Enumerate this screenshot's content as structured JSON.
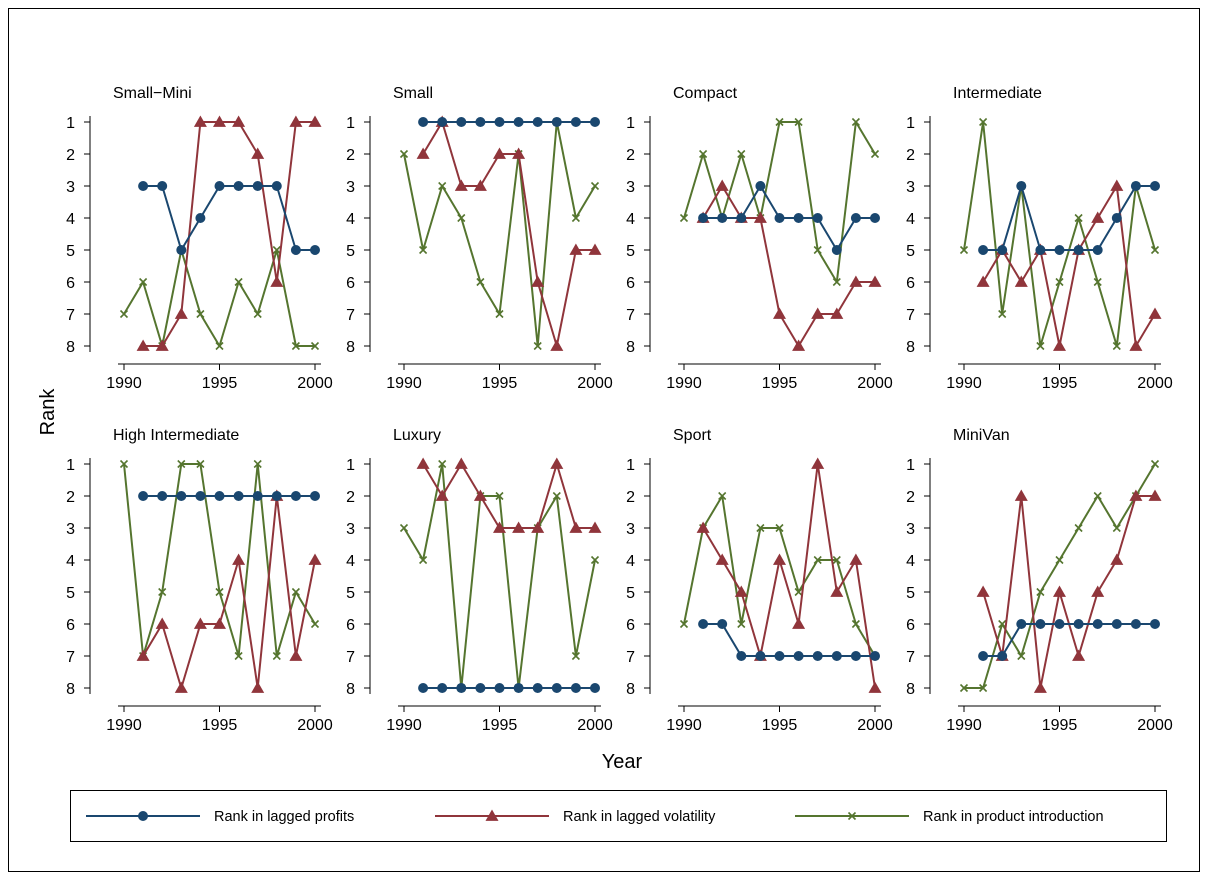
{
  "chart_data": {
    "type": "line",
    "xlabel": "Year",
    "ylabel": "Rank",
    "xlim": [
      1990,
      2000
    ],
    "ylim": [
      1,
      8
    ],
    "y_reversed": true,
    "x_ticks": [
      "1990",
      "1995",
      "2000"
    ],
    "y_ticks": [
      "1",
      "2",
      "3",
      "4",
      "5",
      "6",
      "7",
      "8"
    ],
    "grid": false,
    "legend_placement": "bottom",
    "legend": [
      {
        "label": "Rank in lagged profits",
        "color": "#1a476f",
        "marker": "circle"
      },
      {
        "label": "Rank in lagged volatility",
        "color": "#90353b",
        "marker": "triangle"
      },
      {
        "label": "Rank in product introduction",
        "color": "#55752f",
        "marker": "x"
      }
    ],
    "panels": [
      {
        "title": "Small−Mini",
        "series": [
          {
            "x": [
              1991,
              1992,
              1993,
              1994,
              1995,
              1996,
              1997,
              1998,
              1999,
              2000
            ],
            "y": [
              3,
              3,
              5,
              4,
              3,
              3,
              3,
              3,
              5,
              5
            ]
          },
          {
            "x": [
              1991,
              1992,
              1993,
              1994,
              1995,
              1996,
              1997,
              1998,
              1999,
              2000
            ],
            "y": [
              8,
              8,
              7,
              1,
              1,
              1,
              2,
              6,
              1,
              1
            ]
          },
          {
            "x": [
              1990,
              1991,
              1992,
              1993,
              1994,
              1995,
              1996,
              1997,
              1998,
              1999,
              2000
            ],
            "y": [
              7,
              6,
              8,
              5,
              7,
              8,
              6,
              7,
              5,
              8,
              8
            ]
          }
        ]
      },
      {
        "title": "Small",
        "series": [
          {
            "x": [
              1991,
              1992,
              1993,
              1994,
              1995,
              1996,
              1997,
              1998,
              1999,
              2000
            ],
            "y": [
              1,
              1,
              1,
              1,
              1,
              1,
              1,
              1,
              1,
              1
            ]
          },
          {
            "x": [
              1991,
              1992,
              1993,
              1994,
              1995,
              1996,
              1997,
              1998,
              1999,
              2000
            ],
            "y": [
              2,
              1,
              3,
              3,
              2,
              2,
              6,
              8,
              5,
              5
            ]
          },
          {
            "x": [
              1990,
              1991,
              1992,
              1993,
              1994,
              1995,
              1996,
              1997,
              1998,
              1999,
              2000
            ],
            "y": [
              2,
              5,
              3,
              4,
              6,
              7,
              2,
              8,
              1,
              4,
              3
            ]
          }
        ]
      },
      {
        "title": "Compact",
        "series": [
          {
            "x": [
              1991,
              1992,
              1993,
              1994,
              1995,
              1996,
              1997,
              1998,
              1999,
              2000
            ],
            "y": [
              4,
              4,
              4,
              3,
              4,
              4,
              4,
              5,
              4,
              4
            ]
          },
          {
            "x": [
              1991,
              1992,
              1993,
              1994,
              1995,
              1996,
              1997,
              1998,
              1999,
              2000
            ],
            "y": [
              4,
              3,
              4,
              4,
              7,
              8,
              7,
              7,
              6,
              6
            ]
          },
          {
            "x": [
              1990,
              1991,
              1992,
              1993,
              1994,
              1995,
              1996,
              1997,
              1998,
              1999,
              2000
            ],
            "y": [
              4,
              2,
              4,
              2,
              4,
              1,
              1,
              5,
              6,
              1,
              2
            ]
          }
        ]
      },
      {
        "title": "Intermediate",
        "series": [
          {
            "x": [
              1991,
              1992,
              1993,
              1994,
              1995,
              1996,
              1997,
              1998,
              1999,
              2000
            ],
            "y": [
              5,
              5,
              3,
              5,
              5,
              5,
              5,
              4,
              3,
              3
            ]
          },
          {
            "x": [
              1991,
              1992,
              1993,
              1994,
              1995,
              1996,
              1997,
              1998,
              1999,
              2000
            ],
            "y": [
              6,
              5,
              6,
              5,
              8,
              5,
              4,
              3,
              8,
              7
            ]
          },
          {
            "x": [
              1990,
              1991,
              1992,
              1993,
              1994,
              1995,
              1996,
              1997,
              1998,
              1999,
              2000
            ],
            "y": [
              5,
              1,
              7,
              3,
              8,
              6,
              4,
              6,
              8,
              3,
              5
            ]
          }
        ]
      },
      {
        "title": "High Intermediate",
        "series": [
          {
            "x": [
              1991,
              1992,
              1993,
              1994,
              1995,
              1996,
              1997,
              1998,
              1999,
              2000
            ],
            "y": [
              2,
              2,
              2,
              2,
              2,
              2,
              2,
              2,
              2,
              2
            ]
          },
          {
            "x": [
              1991,
              1992,
              1993,
              1994,
              1995,
              1996,
              1997,
              1998,
              1999,
              2000
            ],
            "y": [
              7,
              6,
              8,
              6,
              6,
              4,
              8,
              2,
              7,
              4
            ]
          },
          {
            "x": [
              1990,
              1991,
              1992,
              1993,
              1994,
              1995,
              1996,
              1997,
              1998,
              1999,
              2000
            ],
            "y": [
              1,
              7,
              5,
              1,
              1,
              5,
              7,
              1,
              7,
              5,
              6
            ]
          }
        ]
      },
      {
        "title": "Luxury",
        "series": [
          {
            "x": [
              1991,
              1992,
              1993,
              1994,
              1995,
              1996,
              1997,
              1998,
              1999,
              2000
            ],
            "y": [
              8,
              8,
              8,
              8,
              8,
              8,
              8,
              8,
              8,
              8
            ]
          },
          {
            "x": [
              1991,
              1992,
              1993,
              1994,
              1995,
              1996,
              1997,
              1998,
              1999,
              2000
            ],
            "y": [
              1,
              2,
              1,
              2,
              3,
              3,
              3,
              1,
              3,
              3
            ]
          },
          {
            "x": [
              1990,
              1991,
              1992,
              1993,
              1994,
              1995,
              1996,
              1997,
              1998,
              1999,
              2000
            ],
            "y": [
              3,
              4,
              1,
              8,
              2,
              2,
              8,
              3,
              2,
              7,
              4
            ]
          }
        ]
      },
      {
        "title": "Sport",
        "series": [
          {
            "x": [
              1991,
              1992,
              1993,
              1994,
              1995,
              1996,
              1997,
              1998,
              1999,
              2000
            ],
            "y": [
              6,
              6,
              7,
              7,
              7,
              7,
              7,
              7,
              7,
              7
            ]
          },
          {
            "x": [
              1991,
              1992,
              1993,
              1994,
              1995,
              1996,
              1997,
              1998,
              1999,
              2000
            ],
            "y": [
              3,
              4,
              5,
              7,
              4,
              6,
              1,
              5,
              4,
              8
            ]
          },
          {
            "x": [
              1990,
              1991,
              1992,
              1993,
              1994,
              1995,
              1996,
              1997,
              1998,
              1999,
              2000
            ],
            "y": [
              6,
              3,
              2,
              6,
              3,
              3,
              5,
              4,
              4,
              6,
              7
            ]
          }
        ]
      },
      {
        "title": "MiniVan",
        "series": [
          {
            "x": [
              1991,
              1992,
              1993,
              1994,
              1995,
              1996,
              1997,
              1998,
              1999,
              2000
            ],
            "y": [
              7,
              7,
              6,
              6,
              6,
              6,
              6,
              6,
              6,
              6
            ]
          },
          {
            "x": [
              1991,
              1992,
              1993,
              1994,
              1995,
              1996,
              1997,
              1998,
              1999,
              2000
            ],
            "y": [
              5,
              7,
              2,
              8,
              5,
              7,
              5,
              4,
              2,
              2
            ]
          },
          {
            "x": [
              1990,
              1991,
              1992,
              1993,
              1994,
              1995,
              1996,
              1997,
              1998,
              1999,
              2000
            ],
            "y": [
              8,
              8,
              6,
              7,
              5,
              4,
              3,
              2,
              3,
              2,
              1
            ]
          }
        ]
      }
    ]
  }
}
